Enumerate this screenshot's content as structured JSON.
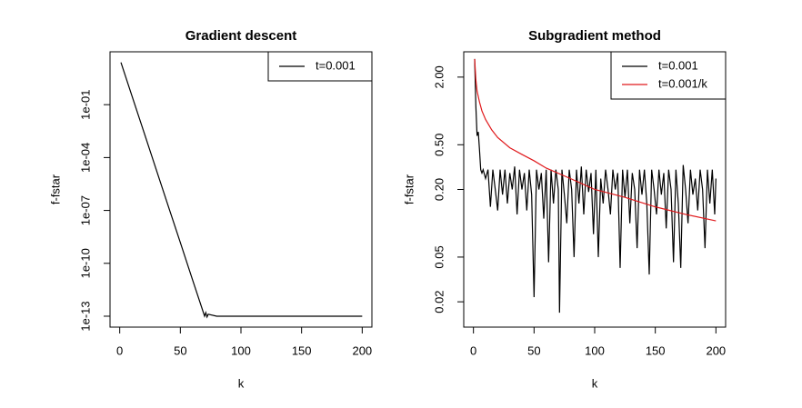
{
  "chart_data": [
    {
      "type": "line",
      "title": "Gradient descent",
      "xlabel": "k",
      "ylabel": "f-fstar",
      "log_y": true,
      "legend": "topright",
      "xlim": [
        -8,
        208
      ],
      "xticks": [
        0,
        50,
        100,
        150,
        200
      ],
      "ylim": [
        2.4e-14,
        100
      ],
      "yticks": [
        {
          "value": 0.1,
          "label": "1e-01"
        },
        {
          "value": 0.0001,
          "label": "1e-04"
        },
        {
          "value": 1e-07,
          "label": "1e-07"
        },
        {
          "value": 1e-10,
          "label": "1e-10"
        },
        {
          "value": 1e-13,
          "label": "1e-13"
        }
      ],
      "series": [
        {
          "name": "t=0.001",
          "color": "#000000",
          "x": [
            1,
            10,
            20,
            30,
            40,
            50,
            60,
            70,
            71,
            72,
            73,
            80,
            100,
            130,
            160,
            200
          ],
          "values": [
            25,
            0.33,
            0.0027,
            2.2e-05,
            1.8e-07,
            1.5e-09,
            1.2e-11,
            1e-13,
            1.6e-13,
            9e-14,
            1.3e-13,
            1e-13,
            1e-13,
            1e-13,
            1e-13,
            1e-13
          ]
        }
      ]
    },
    {
      "type": "line",
      "title": "Subgradient method",
      "xlabel": "k",
      "ylabel": "f-fstar",
      "log_y": true,
      "legend": "topright",
      "xlim": [
        -8,
        208
      ],
      "xticks": [
        0,
        50,
        100,
        150,
        200
      ],
      "ylim": [
        0.0119,
        3.36
      ],
      "yticks": [
        {
          "value": 2,
          "label": "2.00"
        },
        {
          "value": 0.5,
          "label": "0.50"
        },
        {
          "value": 0.2,
          "label": "0.20"
        },
        {
          "value": 0.05,
          "label": "0.05"
        },
        {
          "value": 0.02,
          "label": "0.02"
        }
      ],
      "series": [
        {
          "name": "t=0.001",
          "color": "#000000",
          "x": [
            1,
            2,
            3,
            4,
            5,
            6,
            7,
            8,
            10,
            12,
            14,
            16,
            18,
            20,
            22,
            24,
            26,
            28,
            30,
            32,
            34,
            36,
            38,
            40,
            42,
            44,
            46,
            48,
            50,
            52,
            54,
            56,
            58,
            60,
            62,
            64,
            66,
            68,
            70,
            71,
            73,
            75,
            77,
            79,
            81,
            83,
            85,
            87,
            89,
            91,
            93,
            95,
            97,
            99,
            101,
            103,
            105,
            107,
            109,
            111,
            113,
            115,
            117,
            119,
            121,
            123,
            125,
            127,
            129,
            131,
            133,
            135,
            137,
            139,
            141,
            143,
            145,
            147,
            149,
            151,
            153,
            155,
            157,
            159,
            161,
            163,
            165,
            167,
            169,
            171,
            173,
            175,
            177,
            179,
            181,
            183,
            185,
            187,
            189,
            191,
            193,
            195,
            197,
            199,
            200
          ],
          "values": [
            2.9,
            1.1,
            0.6,
            0.65,
            0.45,
            0.3,
            0.28,
            0.3,
            0.25,
            0.3,
            0.14,
            0.3,
            0.2,
            0.13,
            0.3,
            0.18,
            0.3,
            0.15,
            0.28,
            0.2,
            0.32,
            0.12,
            0.3,
            0.2,
            0.28,
            0.13,
            0.3,
            0.18,
            0.022,
            0.3,
            0.2,
            0.28,
            0.11,
            0.3,
            0.045,
            0.3,
            0.15,
            0.3,
            0.2,
            0.016,
            0.3,
            0.18,
            0.1,
            0.3,
            0.2,
            0.05,
            0.3,
            0.15,
            0.32,
            0.12,
            0.3,
            0.19,
            0.28,
            0.08,
            0.3,
            0.05,
            0.25,
            0.15,
            0.3,
            0.2,
            0.12,
            0.3,
            0.2,
            0.28,
            0.04,
            0.3,
            0.17,
            0.3,
            0.1,
            0.28,
            0.2,
            0.06,
            0.3,
            0.18,
            0.3,
            0.15,
            0.035,
            0.3,
            0.2,
            0.12,
            0.3,
            0.18,
            0.28,
            0.09,
            0.3,
            0.2,
            0.045,
            0.3,
            0.15,
            0.04,
            0.33,
            0.2,
            0.1,
            0.3,
            0.18,
            0.25,
            0.13,
            0.3,
            0.2,
            0.06,
            0.3,
            0.15,
            0.3,
            0.12,
            0.25
          ]
        },
        {
          "name": "t=0.001/k",
          "color": "#e0191c",
          "x": [
            1,
            2,
            3,
            5,
            7,
            10,
            15,
            20,
            30,
            40,
            50,
            60,
            80,
            100,
            125,
            150,
            175,
            200
          ],
          "values": [
            2.9,
            1.9,
            1.5,
            1.2,
            1.0,
            0.84,
            0.68,
            0.58,
            0.47,
            0.41,
            0.36,
            0.31,
            0.25,
            0.2,
            0.17,
            0.14,
            0.12,
            0.105
          ]
        }
      ]
    }
  ]
}
